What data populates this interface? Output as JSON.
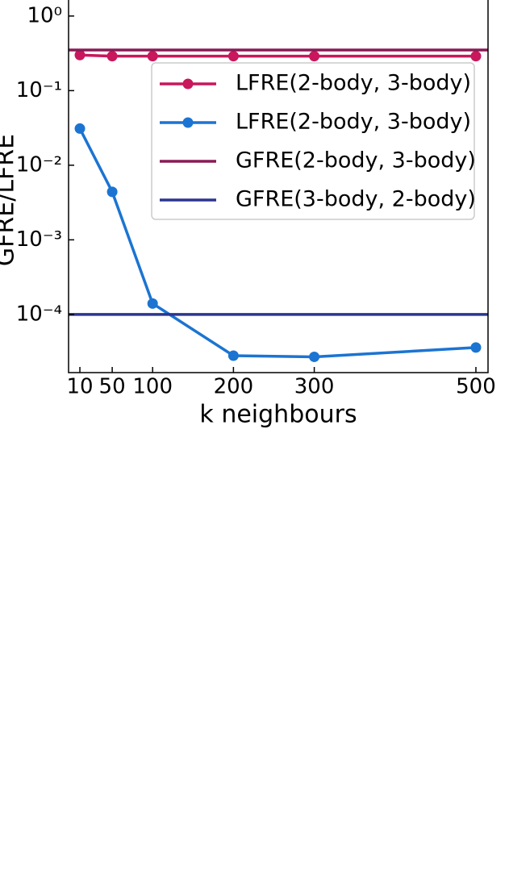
{
  "chart_data": {
    "type": "line",
    "ylabel": "GFRE/LFRE",
    "xlabel": "k neighbours",
    "x": [
      10,
      50,
      100,
      200,
      300,
      500
    ],
    "xlim": [
      -4,
      515
    ],
    "xticks": [
      10,
      50,
      100,
      200,
      300,
      500
    ],
    "ylim": [
      1.66e-05,
      1.64
    ],
    "yscale": "log",
    "yticks": [
      {
        "value": 1,
        "label": "10⁰"
      },
      {
        "value": 0.1,
        "label": "10⁻¹"
      },
      {
        "value": 0.01,
        "label": "10⁻²"
      },
      {
        "value": 0.001,
        "label": "10⁻³"
      },
      {
        "value": 0.0001,
        "label": "10⁻⁴"
      }
    ],
    "legend": "upper right",
    "series": [
      {
        "name": "LFRE(2-body, 3-body)",
        "color": "#c8175d",
        "marker": true,
        "values": [
          0.3,
          0.29,
          0.29,
          0.29,
          0.29,
          0.29
        ]
      },
      {
        "name": "LFRE(2-body, 3-body)",
        "color": "#1b74d2",
        "marker": true,
        "values": [
          0.031,
          0.0044,
          0.00014,
          2.8e-05,
          2.7e-05,
          3.6e-05
        ]
      },
      {
        "name": "GFRE(2-body, 3-body)",
        "color": "#8a1a55",
        "hline": true,
        "value": 0.35
      },
      {
        "name": "GFRE(3-body, 2-body)",
        "color": "#2b3590",
        "hline": true,
        "value": 0.0001
      }
    ]
  }
}
